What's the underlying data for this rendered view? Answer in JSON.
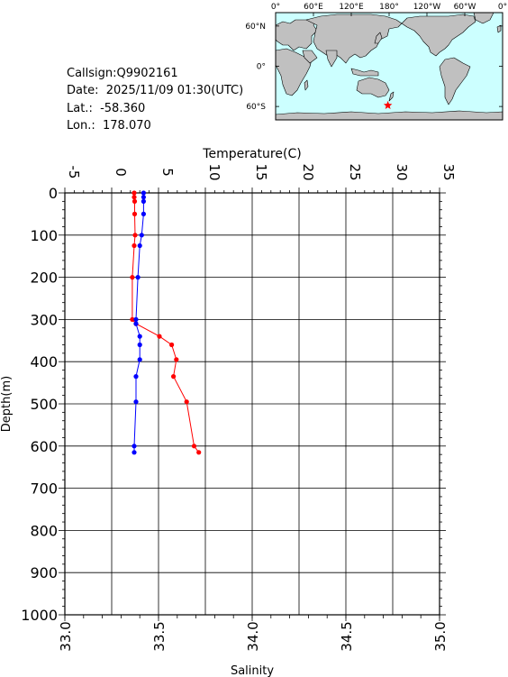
{
  "station": {
    "callsign_label": "Callsign:",
    "callsign": "Q9902161",
    "date_label": "Date:",
    "date": "2025/11/09 01:30(UTC)",
    "lat_label": "Lat.:",
    "lat": "-58.360",
    "lon_label": "Lon.:",
    "lon": "178.070"
  },
  "map": {
    "lon_labels": [
      "0°",
      "60°E",
      "120°E",
      "180°",
      "120°W",
      "60°W",
      "0°"
    ],
    "lat_labels": [
      "60°N",
      "0°",
      "60°S"
    ],
    "marker_lat": -58.36,
    "marker_lon": 178.07,
    "ocean_color": "#ccffff",
    "land_color": "#c0c0c0",
    "marker_color": "#ff0000",
    "marker_icon": "star-icon"
  },
  "chart_data": {
    "type": "line",
    "title": "",
    "xlabel_top": "Temperature(C)",
    "xlabel_bottom": "Salinity",
    "ylabel": "Depth(m)",
    "temperature_axis": {
      "range": [
        -5,
        35
      ],
      "ticks": [
        "-5",
        "0",
        "5",
        "10",
        "15",
        "20",
        "25",
        "30",
        "35"
      ]
    },
    "salinity_axis": {
      "range": [
        33.0,
        35.0
      ],
      "ticks": [
        "33.0",
        "33.5",
        "34.0",
        "34.5",
        "35.0"
      ]
    },
    "depth_axis": {
      "range": [
        0,
        1000
      ],
      "reversed": true,
      "ticks": [
        "0",
        "100",
        "200",
        "300",
        "400",
        "500",
        "600",
        "700",
        "800",
        "900",
        "1000"
      ]
    },
    "grid": true,
    "series": [
      {
        "name": "Temperature",
        "axis": "temperature",
        "color": "#ff0000",
        "depth": [
          0,
          10,
          20,
          50,
          100,
          125,
          200,
          300,
          310,
          340,
          360,
          395,
          435,
          495,
          600,
          615
        ],
        "values": [
          2.4,
          2.4,
          2.45,
          2.45,
          2.5,
          2.4,
          2.2,
          2.2,
          2.6,
          5.1,
          6.4,
          6.9,
          6.6,
          8.0,
          8.8,
          9.3
        ]
      },
      {
        "name": "Salinity",
        "axis": "salinity",
        "color": "#0000ff",
        "depth": [
          0,
          10,
          20,
          50,
          100,
          125,
          200,
          300,
          310,
          340,
          360,
          395,
          435,
          495,
          600,
          615
        ],
        "values": [
          33.42,
          33.42,
          33.42,
          33.42,
          33.41,
          33.4,
          33.39,
          33.38,
          33.38,
          33.4,
          33.4,
          33.4,
          33.38,
          33.38,
          33.37,
          33.37
        ]
      }
    ]
  }
}
